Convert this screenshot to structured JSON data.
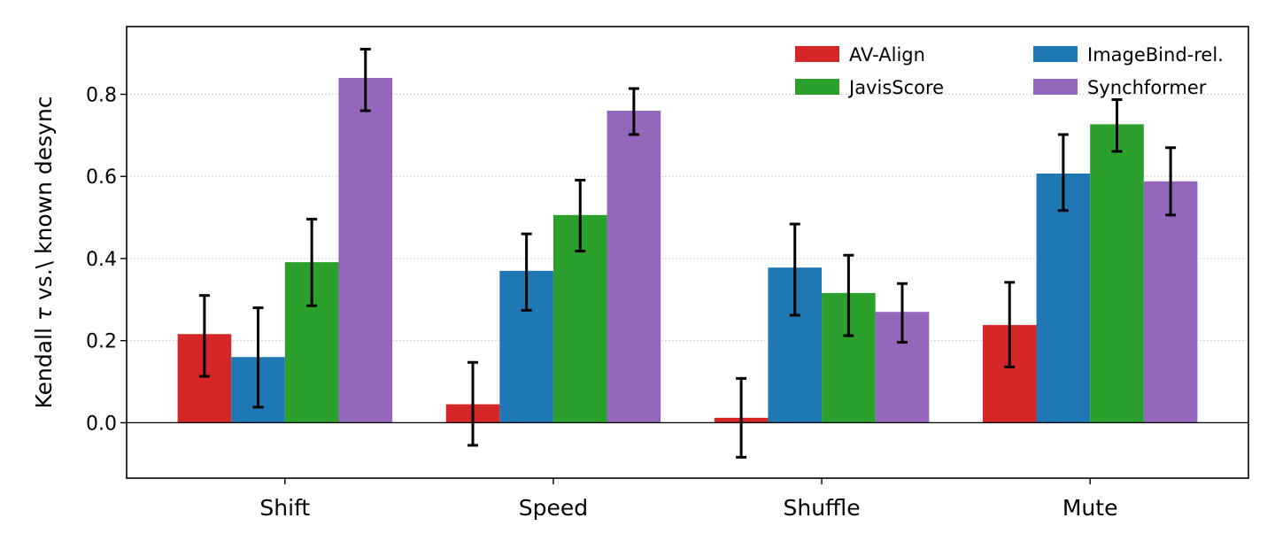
{
  "chart_data": {
    "type": "bar",
    "title": "",
    "xlabel": "",
    "ylabel_prefix": "Kendall ",
    "ylabel_symbol": "τ",
    "ylabel_suffix": " vs.\\ known desync",
    "categories": [
      "Shift",
      "Speed",
      "Shuffle",
      "Mute"
    ],
    "ylim": [
      -0.135,
      0.965
    ],
    "yticks": [
      0.0,
      0.2,
      0.4,
      0.6,
      0.8
    ],
    "ytick_labels": [
      "0.0",
      "0.2",
      "0.4",
      "0.6",
      "0.8"
    ],
    "grid": "horizontal dotted",
    "zero_line": true,
    "legend_position": "top-right",
    "series": [
      {
        "name": "AV-Align",
        "color": "#d62728",
        "values": [
          0.216,
          0.045,
          0.012,
          0.238
        ],
        "error_low": [
          0.113,
          -0.055,
          -0.084,
          0.136
        ],
        "error_high": [
          0.31,
          0.147,
          0.108,
          0.342
        ]
      },
      {
        "name": "ImageBind-rel.",
        "color": "#1f77b4",
        "values": [
          0.16,
          0.37,
          0.378,
          0.607
        ],
        "error_low": [
          0.038,
          0.274,
          0.262,
          0.517
        ],
        "error_high": [
          0.28,
          0.46,
          0.484,
          0.702
        ]
      },
      {
        "name": "JavisScore",
        "color": "#2ca02c",
        "values": [
          0.391,
          0.506,
          0.316,
          0.727
        ],
        "error_low": [
          0.285,
          0.418,
          0.212,
          0.661
        ],
        "error_high": [
          0.496,
          0.591,
          0.408,
          0.787
        ]
      },
      {
        "name": "Synchformer",
        "color": "#9467bd",
        "values": [
          0.84,
          0.76,
          0.27,
          0.588
        ],
        "error_low": [
          0.76,
          0.702,
          0.196,
          0.506
        ],
        "error_high": [
          0.91,
          0.814,
          0.339,
          0.67
        ]
      }
    ]
  }
}
